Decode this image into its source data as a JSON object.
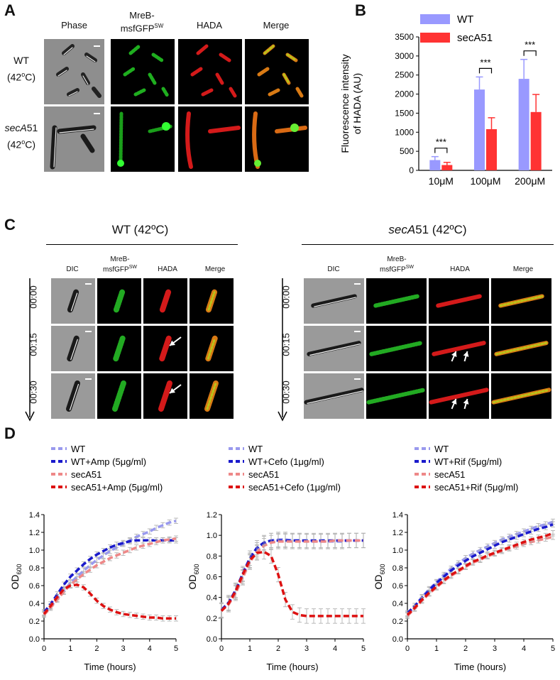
{
  "panel_labels": {
    "A": "A",
    "B": "B",
    "C": "C",
    "D": "D"
  },
  "panel_a": {
    "columns": [
      "Phase",
      "MreB-msfGFP",
      "HADA",
      "Merge"
    ],
    "mreb_line1": "MreB-",
    "mreb_line2": "msfGFP",
    "mreb_sup": "SW",
    "rows": [
      {
        "strain": "WT",
        "temp": "(42",
        "temp_sup": "o",
        "temp_end": "C)"
      },
      {
        "strain": "secA",
        "strain_suffix": "51",
        "temp": "(42",
        "temp_sup": "o",
        "temp_end": "C)"
      }
    ]
  },
  "panel_c": {
    "wt_title": "WT (42ºC)",
    "seca_title_italic": "secA",
    "seca_title_rest": "51 (42ºC)",
    "columns": [
      "DIC",
      "MreB-",
      "msfGFP",
      "HADA",
      "Merge"
    ],
    "mreb_sup": "SW",
    "times": [
      "00:00",
      "00:15",
      "00:30"
    ]
  },
  "chart_data": [
    {
      "id": "B",
      "type": "bar",
      "title": "",
      "ylabel": "Fluorescence intensity of HADA (AU)",
      "ylabel_line1": "Fluorescence intensity",
      "ylabel_line2": "of HADA (AU)",
      "ylim": [
        0,
        3500
      ],
      "yticks": [
        0,
        500,
        1000,
        1500,
        2000,
        2500,
        3000,
        3500
      ],
      "categories": [
        "10μM",
        "100μM",
        "200μM"
      ],
      "series": [
        {
          "name": "WT",
          "color": "#9999ff",
          "values": [
            270,
            2120,
            2400
          ],
          "errors": [
            90,
            330,
            510
          ]
        },
        {
          "name": "secA51",
          "color": "#ff3333",
          "values": [
            140,
            1080,
            1530
          ],
          "errors": [
            70,
            300,
            460
          ]
        }
      ],
      "significance": [
        "***",
        "***",
        "***"
      ]
    },
    {
      "id": "D1",
      "type": "line",
      "xlabel": "Time (hours)",
      "ylabel": "OD",
      "ylabel_sub": "600",
      "xlim": [
        0,
        5
      ],
      "ylim": [
        0,
        1.4
      ],
      "xticks": [
        0,
        1,
        2,
        3,
        4,
        5
      ],
      "yticks": [
        0.0,
        0.2,
        0.4,
        0.6,
        0.8,
        1.0,
        1.2,
        1.4
      ],
      "ytick_labels": [
        "0.0",
        "0.2",
        "0.4",
        "0.6",
        "0.8",
        "1.0",
        "1.2",
        "1.4"
      ],
      "series": [
        {
          "name": "WT",
          "color": "#9999ee",
          "x": [
            0,
            0.25,
            0.5,
            0.75,
            1,
            1.25,
            1.5,
            1.75,
            2,
            2.25,
            2.5,
            2.75,
            3,
            3.25,
            3.5,
            3.75,
            4,
            4.25,
            4.5,
            4.75,
            5
          ],
          "y": [
            0.29,
            0.36,
            0.45,
            0.54,
            0.63,
            0.7,
            0.77,
            0.83,
            0.89,
            0.94,
            0.99,
            1.03,
            1.07,
            1.11,
            1.15,
            1.18,
            1.21,
            1.25,
            1.28,
            1.31,
            1.33
          ],
          "err": 0.03
        },
        {
          "name": "WT+Amp (5μg/ml)",
          "color": "#1a1acc",
          "x": [
            0,
            0.25,
            0.5,
            0.75,
            1,
            1.25,
            1.5,
            1.75,
            2,
            2.25,
            2.5,
            2.75,
            3,
            3.25,
            3.5,
            3.75,
            4,
            4.25,
            4.5,
            4.75,
            5
          ],
          "y": [
            0.3,
            0.39,
            0.5,
            0.61,
            0.7,
            0.77,
            0.84,
            0.9,
            0.95,
            0.99,
            1.03,
            1.06,
            1.08,
            1.1,
            1.11,
            1.11,
            1.11,
            1.11,
            1.11,
            1.11,
            1.11
          ],
          "err": 0.03
        },
        {
          "name": "secA51",
          "color": "#ee8888",
          "x": [
            0,
            0.25,
            0.5,
            0.75,
            1,
            1.25,
            1.5,
            1.75,
            2,
            2.25,
            2.5,
            2.75,
            3,
            3.25,
            3.5,
            3.75,
            4,
            4.25,
            4.5,
            4.75,
            5
          ],
          "y": [
            0.27,
            0.35,
            0.44,
            0.53,
            0.61,
            0.67,
            0.73,
            0.78,
            0.83,
            0.87,
            0.91,
            0.94,
            0.97,
            1.0,
            1.03,
            1.05,
            1.07,
            1.09,
            1.11,
            1.12,
            1.13
          ],
          "err": 0.03
        },
        {
          "name": "secA51+Amp (5μg/ml)",
          "color": "#dd1111",
          "x": [
            0,
            0.25,
            0.5,
            0.75,
            1,
            1.25,
            1.5,
            1.75,
            2,
            2.25,
            2.5,
            2.75,
            3,
            3.25,
            3.5,
            3.75,
            4,
            4.25,
            4.5,
            4.75,
            5
          ],
          "y": [
            0.28,
            0.37,
            0.47,
            0.56,
            0.6,
            0.61,
            0.58,
            0.51,
            0.43,
            0.37,
            0.33,
            0.3,
            0.28,
            0.27,
            0.26,
            0.25,
            0.24,
            0.24,
            0.23,
            0.23,
            0.23
          ],
          "err": 0.03
        }
      ]
    },
    {
      "id": "D2",
      "type": "line",
      "xlabel": "Time (hours)",
      "ylabel": "OD",
      "ylabel_sub": "600",
      "xlim": [
        0,
        5
      ],
      "ylim": [
        0,
        1.2
      ],
      "xticks": [
        0,
        1,
        2,
        3,
        4,
        5
      ],
      "yticks": [
        0.0,
        0.2,
        0.4,
        0.6,
        0.8,
        1.0,
        1.2
      ],
      "ytick_labels": [
        "0.0",
        "0.2",
        "0.4",
        "0.6",
        "0.8",
        "1.0",
        "1.2"
      ],
      "series": [
        {
          "name": "WT",
          "color": "#9999ee",
          "x": [
            0,
            0.25,
            0.5,
            0.75,
            1,
            1.25,
            1.5,
            1.75,
            2,
            2.25,
            2.5,
            2.75,
            3,
            3.25,
            3.5,
            3.75,
            4,
            4.25,
            4.5,
            4.75,
            5
          ],
          "y": [
            0.28,
            0.34,
            0.45,
            0.6,
            0.75,
            0.86,
            0.92,
            0.95,
            0.96,
            0.96,
            0.95,
            0.95,
            0.94,
            0.94,
            0.94,
            0.94,
            0.94,
            0.94,
            0.95,
            0.95,
            0.95
          ],
          "err": 0.07
        },
        {
          "name": "WT+Cefo (1μg/ml)",
          "color": "#1a1acc",
          "x": [
            0,
            0.25,
            0.5,
            0.75,
            1,
            1.25,
            1.5,
            1.75,
            2,
            2.25,
            2.5,
            2.75,
            3,
            3.25,
            3.5,
            3.75,
            4,
            4.25,
            4.5,
            4.75,
            5
          ],
          "y": [
            0.28,
            0.35,
            0.47,
            0.63,
            0.78,
            0.88,
            0.93,
            0.95,
            0.95,
            0.95,
            0.95,
            0.95,
            0.95,
            0.95,
            0.95,
            0.95,
            0.95,
            0.95,
            0.95,
            0.95,
            0.95
          ],
          "err": 0.07
        },
        {
          "name": "secA51",
          "color": "#ee8888",
          "x": [
            0,
            0.25,
            0.5,
            0.75,
            1,
            1.25,
            1.5,
            1.75,
            2,
            2.25,
            2.5,
            2.75,
            3,
            3.25,
            3.5,
            3.75,
            4,
            4.25,
            4.5,
            4.75,
            5
          ],
          "y": [
            0.27,
            0.33,
            0.44,
            0.59,
            0.74,
            0.84,
            0.9,
            0.93,
            0.94,
            0.94,
            0.94,
            0.94,
            0.94,
            0.94,
            0.94,
            0.94,
            0.95,
            0.95,
            0.95,
            0.95,
            0.95
          ],
          "err": 0.07
        },
        {
          "name": "secA51+Cefo (1μg/ml)",
          "color": "#dd1111",
          "x": [
            0,
            0.25,
            0.5,
            0.75,
            1,
            1.25,
            1.5,
            1.75,
            2,
            2.25,
            2.5,
            2.75,
            3,
            3.25,
            3.5,
            3.75,
            4,
            4.25,
            4.5,
            4.75,
            5
          ],
          "y": [
            0.27,
            0.34,
            0.46,
            0.62,
            0.76,
            0.83,
            0.84,
            0.8,
            0.62,
            0.38,
            0.26,
            0.23,
            0.22,
            0.22,
            0.22,
            0.22,
            0.22,
            0.22,
            0.22,
            0.22,
            0.22
          ],
          "err": 0.07
        }
      ]
    },
    {
      "id": "D3",
      "type": "line",
      "xlabel": "Time (hours)",
      "ylabel": "OD",
      "ylabel_sub": "600",
      "xlim": [
        0,
        5
      ],
      "ylim": [
        0,
        1.4
      ],
      "xticks": [
        0,
        1,
        2,
        3,
        4,
        5
      ],
      "yticks": [
        0.0,
        0.2,
        0.4,
        0.6,
        0.8,
        1.0,
        1.2,
        1.4
      ],
      "ytick_labels": [
        "0.0",
        "0.2",
        "0.4",
        "0.6",
        "0.8",
        "1.0",
        "1.2",
        "1.4"
      ],
      "series": [
        {
          "name": "WT",
          "color": "#9999ee",
          "x": [
            0,
            0.25,
            0.5,
            0.75,
            1,
            1.25,
            1.5,
            1.75,
            2,
            2.25,
            2.5,
            2.75,
            3,
            3.25,
            3.5,
            3.75,
            4,
            4.25,
            4.5,
            4.75,
            5
          ],
          "y": [
            0.28,
            0.37,
            0.47,
            0.56,
            0.64,
            0.72,
            0.79,
            0.85,
            0.91,
            0.96,
            1.0,
            1.04,
            1.08,
            1.12,
            1.15,
            1.18,
            1.21,
            1.24,
            1.27,
            1.29,
            1.32
          ],
          "err": 0.03
        },
        {
          "name": "WT+Rif (5μg/ml)",
          "color": "#1a1acc",
          "x": [
            0,
            0.25,
            0.5,
            0.75,
            1,
            1.25,
            1.5,
            1.75,
            2,
            2.25,
            2.5,
            2.75,
            3,
            3.25,
            3.5,
            3.75,
            4,
            4.25,
            4.5,
            4.75,
            5
          ],
          "y": [
            0.29,
            0.37,
            0.46,
            0.55,
            0.63,
            0.7,
            0.77,
            0.83,
            0.88,
            0.93,
            0.97,
            1.01,
            1.05,
            1.09,
            1.12,
            1.15,
            1.18,
            1.21,
            1.24,
            1.26,
            1.29
          ],
          "err": 0.03
        },
        {
          "name": "secA51",
          "color": "#ee8888",
          "x": [
            0,
            0.25,
            0.5,
            0.75,
            1,
            1.25,
            1.5,
            1.75,
            2,
            2.25,
            2.5,
            2.75,
            3,
            3.25,
            3.5,
            3.75,
            4,
            4.25,
            4.5,
            4.75,
            5
          ],
          "y": [
            0.26,
            0.34,
            0.43,
            0.51,
            0.58,
            0.65,
            0.71,
            0.76,
            0.81,
            0.86,
            0.89,
            0.93,
            0.96,
            0.99,
            1.02,
            1.04,
            1.07,
            1.09,
            1.11,
            1.13,
            1.15
          ],
          "err": 0.03
        },
        {
          "name": "secA51+Rif (5μg/ml)",
          "color": "#dd1111",
          "x": [
            0,
            0.25,
            0.5,
            0.75,
            1,
            1.25,
            1.5,
            1.75,
            2,
            2.25,
            2.5,
            2.75,
            3,
            3.25,
            3.5,
            3.75,
            4,
            4.25,
            4.5,
            4.75,
            5
          ],
          "y": [
            0.27,
            0.35,
            0.44,
            0.52,
            0.59,
            0.66,
            0.72,
            0.77,
            0.82,
            0.87,
            0.9,
            0.94,
            0.97,
            1.0,
            1.03,
            1.06,
            1.09,
            1.12,
            1.14,
            1.16,
            1.19
          ],
          "err": 0.03
        }
      ]
    }
  ]
}
